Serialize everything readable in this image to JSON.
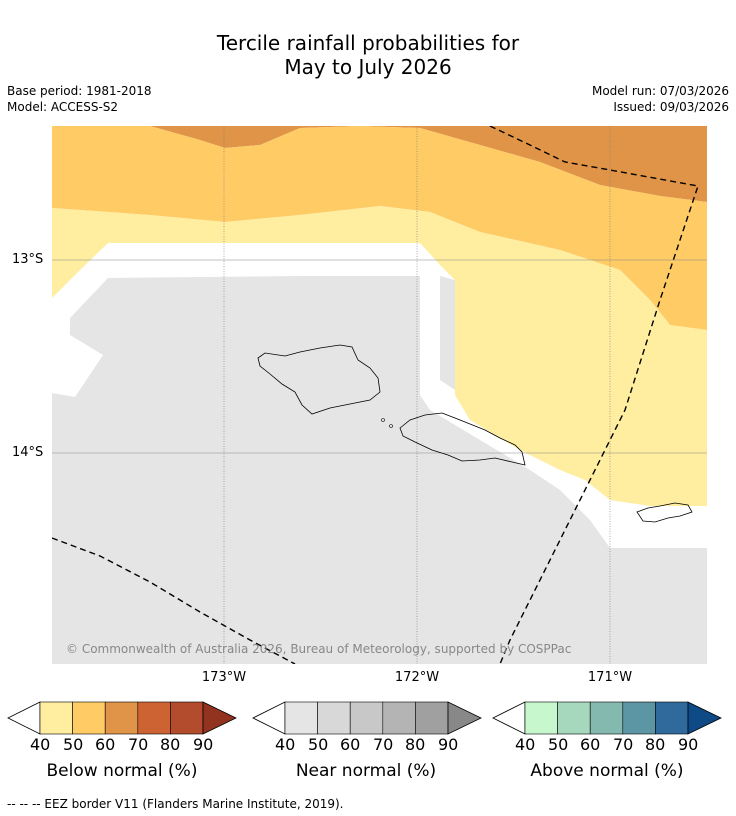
{
  "header": {
    "title_line1": "Tercile rainfall probabilities for",
    "title_line2": "May to July 2026",
    "base_period": "Base period: 1981-2018",
    "model": "Model: ACCESS-S2",
    "model_run": "Model run: 07/03/2026",
    "issued": "Issued: 09/03/2026"
  },
  "map": {
    "lat_labels": [
      "13°S",
      "14°S"
    ],
    "lon_labels": [
      "173°W",
      "172°W",
      "171°W"
    ],
    "copyright": "© Commonwealth of Australia 2026, Bureau of Meteorology, supported by COSPPac"
  },
  "legends": [
    {
      "title": "Below normal (%)",
      "ticks": [
        "40",
        "50",
        "60",
        "70",
        "80",
        "90"
      ],
      "colors": [
        "#ffeda0",
        "#fecb65",
        "#e09447",
        "#cd6332",
        "#b24c2c",
        "#923320"
      ]
    },
    {
      "title": "Near normal (%)",
      "ticks": [
        "40",
        "50",
        "60",
        "70",
        "80",
        "90"
      ],
      "colors": [
        "#e5e5e5",
        "#d8d8d8",
        "#c8c8c8",
        "#b4b4b4",
        "#a0a0a0",
        "#888888"
      ]
    },
    {
      "title": "Above normal (%)",
      "ticks": [
        "40",
        "50",
        "60",
        "70",
        "80",
        "90"
      ],
      "colors": [
        "#c7f7cc",
        "#a6d8bd",
        "#84b9b0",
        "#5c96a4",
        "#306a9c",
        "#0d4a86"
      ]
    }
  ],
  "footnote": "--  --  -- EEZ border V11 (Flanders Marine Institute, 2019).",
  "colors": {
    "below_40_50": "#ffeda0",
    "below_50_60": "#fecb65",
    "below_60_70": "#e09447",
    "near_40_50": "#e5e5e5"
  }
}
